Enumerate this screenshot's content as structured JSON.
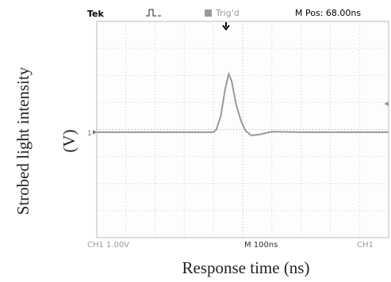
{
  "chart_data": {
    "type": "line",
    "ylabel": "Strobed light intensity",
    "yunit": "(V)",
    "xlabel": "Response time (ns)",
    "x": [
      0,
      200,
      400,
      410,
      425,
      440,
      452,
      462,
      478,
      495,
      510,
      530,
      560,
      600,
      700,
      850,
      1000
    ],
    "values": [
      0,
      0,
      0,
      0.1,
      0.6,
      1.6,
      2.15,
      1.9,
      1.0,
      0.4,
      0.05,
      -0.12,
      -0.08,
      0.02,
      0,
      0,
      0
    ],
    "color": "#9a9a9a",
    "xlim": [
      0,
      1000
    ],
    "ylim": [
      -3.9,
      4.1
    ],
    "grid": true
  },
  "scope": {
    "brand": "Tek",
    "status": "Trig'd",
    "position": "M Pos: 68.00ns",
    "ground_marker": "1",
    "channel_scale": "CH1  1.00V",
    "timebase": "M 100ns",
    "trigger_source": "CH1"
  }
}
